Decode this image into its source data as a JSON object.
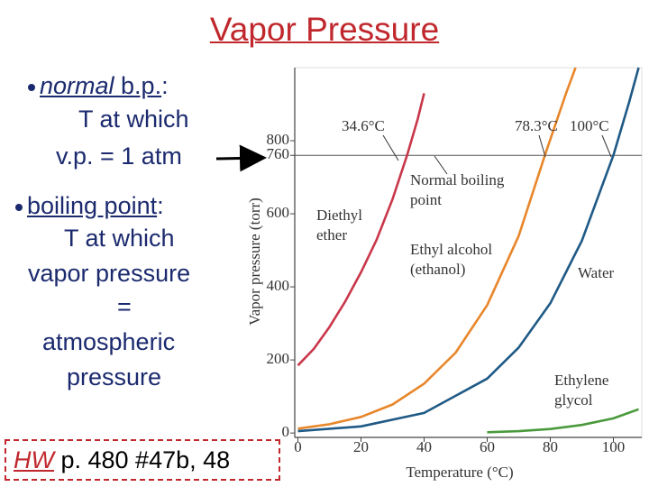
{
  "title": "Vapor Pressure",
  "bullets": [
    {
      "term_italic": "normal",
      "term": " b.p.",
      "colon": ":",
      "lines": [
        "T at which",
        "v.p. = 1 atm"
      ]
    },
    {
      "term": "boiling point",
      "colon": ":",
      "lines": [
        "T at which",
        "vapor pressure",
        "=",
        "atmospheric",
        "pressure"
      ]
    }
  ],
  "homework": {
    "label": "HW",
    "text": " p. 480 #47b, 48"
  },
  "chart_data": {
    "type": "line",
    "xlabel": "Temperature (°C)",
    "ylabel": "Vapor pressure (torr)",
    "xlim": [
      -1,
      109
    ],
    "ylim": [
      -12,
      1000
    ],
    "xticks": [
      0,
      20,
      40,
      60,
      80,
      100
    ],
    "yticks": [
      0,
      200,
      400,
      600,
      760,
      800
    ],
    "hlines": [
      760
    ],
    "annotations": [
      "34.6°C",
      "78.3°C",
      "100°C",
      "Normal boiling point"
    ],
    "series": [
      {
        "name": "Diethyl ether",
        "color": "#c9374a",
        "x": [
          0,
          5,
          10,
          15,
          20,
          25,
          30,
          34.6,
          38,
          40
        ],
        "values": [
          185,
          230,
          290,
          360,
          440,
          530,
          640,
          760,
          860,
          930
        ]
      },
      {
        "name": "Ethyl alcohol (ethanol)",
        "color": "#e8862a",
        "x": [
          0,
          10,
          20,
          30,
          40,
          50,
          60,
          70,
          78.3,
          85,
          88
        ],
        "values": [
          12,
          24,
          44,
          78,
          135,
          220,
          350,
          540,
          760,
          930,
          1000
        ]
      },
      {
        "name": "Water",
        "color": "#1f5a86",
        "x": [
          0,
          20,
          40,
          60,
          70,
          80,
          90,
          100,
          105,
          108
        ],
        "values": [
          5,
          18,
          55,
          149,
          234,
          355,
          526,
          760,
          906,
          1000
        ]
      },
      {
        "name": "Ethylene glycol",
        "color": "#4a9a3c",
        "x": [
          60,
          70,
          80,
          90,
          100,
          108
        ],
        "values": [
          2,
          5,
          11,
          22,
          40,
          65
        ]
      }
    ]
  }
}
